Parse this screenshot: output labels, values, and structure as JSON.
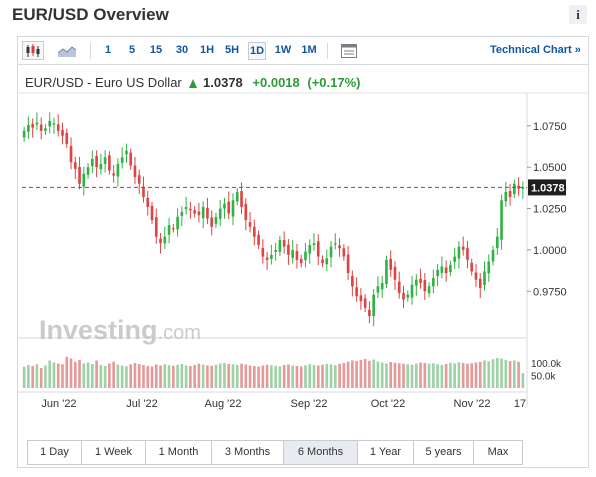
{
  "widget": {
    "title": "EUR/USD Overview",
    "info_label": "i"
  },
  "toolbar": {
    "timeframes": [
      "1",
      "5",
      "15",
      "30",
      "1H",
      "5H",
      "1D",
      "1W",
      "1M"
    ],
    "selected_timeframe": "1D",
    "technical_chart_label": "Technical Chart »"
  },
  "quote": {
    "symbol": "EUR/USD - Euro US Dollar",
    "price": "1.0378",
    "change": "+0.0018",
    "change_pct": "(+0.17%)",
    "direction": "up"
  },
  "watermark": {
    "brand": "Investing",
    "suffix": ".com"
  },
  "range_buttons": [
    "1 Day",
    "1 Week",
    "1 Month",
    "3 Months",
    "6 Months",
    "1 Year",
    "5 years",
    "Max"
  ],
  "selected_range": "6 Months",
  "colors": {
    "up": "#2fb344",
    "down": "#e04343",
    "vol_up": "#9fd1a7",
    "vol_down": "#e59a9a",
    "link": "#1256a0",
    "price_line": "#c0392b",
    "price_tag": "#1f1f1f"
  },
  "chart_data": {
    "type": "candlestick",
    "x_tick_labels": [
      "Jun '22",
      "Jul '22",
      "Aug '22",
      "Sep '22",
      "Oct '22",
      "Nov '22",
      "17"
    ],
    "y_tick_labels": [
      "1.0750",
      "1.0500",
      "1.0250",
      "1.0000",
      "0.9750"
    ],
    "ylim": [
      0.951,
      1.087
    ],
    "last_price": 1.0378,
    "last_price_label": "1.0378",
    "volume_tick_labels": [
      "100.0k",
      "50.0k"
    ],
    "volume_ylim": [
      0,
      160000
    ],
    "series": [
      {
        "name": "price",
        "close": [
          1.072,
          1.0755,
          1.074,
          1.077,
          1.072,
          1.0735,
          1.078,
          1.0765,
          1.072,
          1.069,
          1.064,
          1.053,
          1.049,
          1.04,
          1.046,
          1.05,
          1.055,
          1.05,
          1.052,
          1.056,
          1.048,
          1.045,
          1.052,
          1.056,
          1.06,
          1.051,
          1.044,
          1.04,
          1.032,
          1.026,
          1.018,
          1.008,
          1.004,
          1.008,
          1.015,
          1.013,
          1.02,
          1.023,
          1.026,
          1.024,
          1.022,
          1.021,
          1.026,
          1.019,
          1.014,
          1.02,
          1.025,
          1.028,
          1.022,
          1.03,
          1.035,
          1.026,
          1.018,
          1.014,
          1.008,
          1.003,
          0.996,
          0.994,
          0.997,
          1.0,
          1.006,
          1.002,
          0.997,
          1.0,
          0.994,
          0.992,
          0.999,
          1.003,
          1.004,
          0.996,
          0.992,
          0.995,
          1.002,
          1.004,
          1.001,
          0.996,
          0.986,
          0.978,
          0.972,
          0.969,
          0.965,
          0.96,
          0.973,
          0.978,
          0.98,
          0.994,
          0.988,
          0.982,
          0.974,
          0.97,
          0.973,
          0.979,
          0.982,
          0.98,
          0.975,
          0.978,
          0.983,
          0.988,
          0.99,
          0.986,
          0.991,
          0.996,
          1.002,
          1.0,
          0.994,
          0.987,
          0.982,
          0.977,
          0.987,
          0.993,
          1.0,
          1.008,
          1.03,
          1.035,
          1.032,
          1.04,
          1.037,
          1.038
        ]
      },
      {
        "name": "volume",
        "values": [
          85000,
          92000,
          88000,
          95000,
          80000,
          90000,
          110000,
          102000,
          98000,
          95000,
          125000,
          118000,
          105000,
          112000,
          98000,
          102000,
          96000,
          110000,
          92000,
          88000,
          98000,
          105000,
          94000,
          90000,
          87000,
          95000,
          100000,
          96000,
          92000,
          88000,
          86000,
          94000,
          90000,
          95000,
          91000,
          89000,
          93000,
          96000,
          90000,
          88000,
          92000,
          97000,
          94000,
          91000,
          89000,
          93000,
          98000,
          100000,
          96000,
          95000,
          92000,
          97000,
          94000,
          90000,
          88000,
          86000,
          90000,
          93000,
          91000,
          89000,
          87000,
          92000,
          94000,
          90000,
          88000,
          86000,
          91000,
          95000,
          92000,
          90000,
          93000,
          96000,
          94000,
          91000,
          97000,
          100000,
          105000,
          110000,
          108000,
          112000,
          116000,
          109000,
          114000,
          106000,
          102000,
          98000,
          104000,
          101000,
          99000,
          97000,
          95000,
          93000,
          98000,
          102000,
          100000,
          97000,
          99000,
          95000,
          92000,
          96000,
          101000,
          98000,
          103000,
          100000,
          97000,
          99000,
          102000,
          104000,
          110000,
          106000,
          115000,
          120000,
          118000,
          112000,
          108000,
          110000,
          105000,
          60000
        ]
      }
    ]
  }
}
